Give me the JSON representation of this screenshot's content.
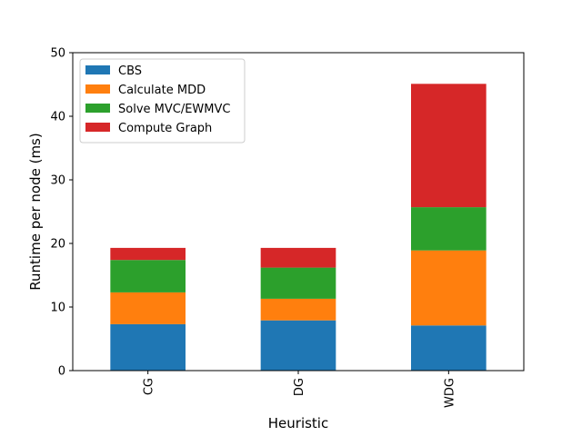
{
  "chart_data": {
    "type": "bar",
    "stacked": true,
    "categories": [
      "CG",
      "DG",
      "WDG"
    ],
    "series": [
      {
        "name": "CBS",
        "color": "#1f77b4",
        "values": [
          7.3,
          7.9,
          7.1
        ]
      },
      {
        "name": "Calculate MDD",
        "color": "#ff7f0e",
        "values": [
          5.0,
          3.4,
          11.8
        ]
      },
      {
        "name": "Solve MVC/EWMVC",
        "color": "#2ca02c",
        "values": [
          5.1,
          4.9,
          6.8
        ]
      },
      {
        "name": "Compute Graph",
        "color": "#d62728",
        "values": [
          1.9,
          3.1,
          19.4
        ]
      }
    ],
    "xlabel": "Heuristic",
    "ylabel": "Runtime per node (ms)",
    "ylim": [
      0,
      50
    ],
    "yticks": [
      0,
      10,
      20,
      30,
      40,
      50
    ],
    "legend_position": "top-left",
    "grid": false
  }
}
